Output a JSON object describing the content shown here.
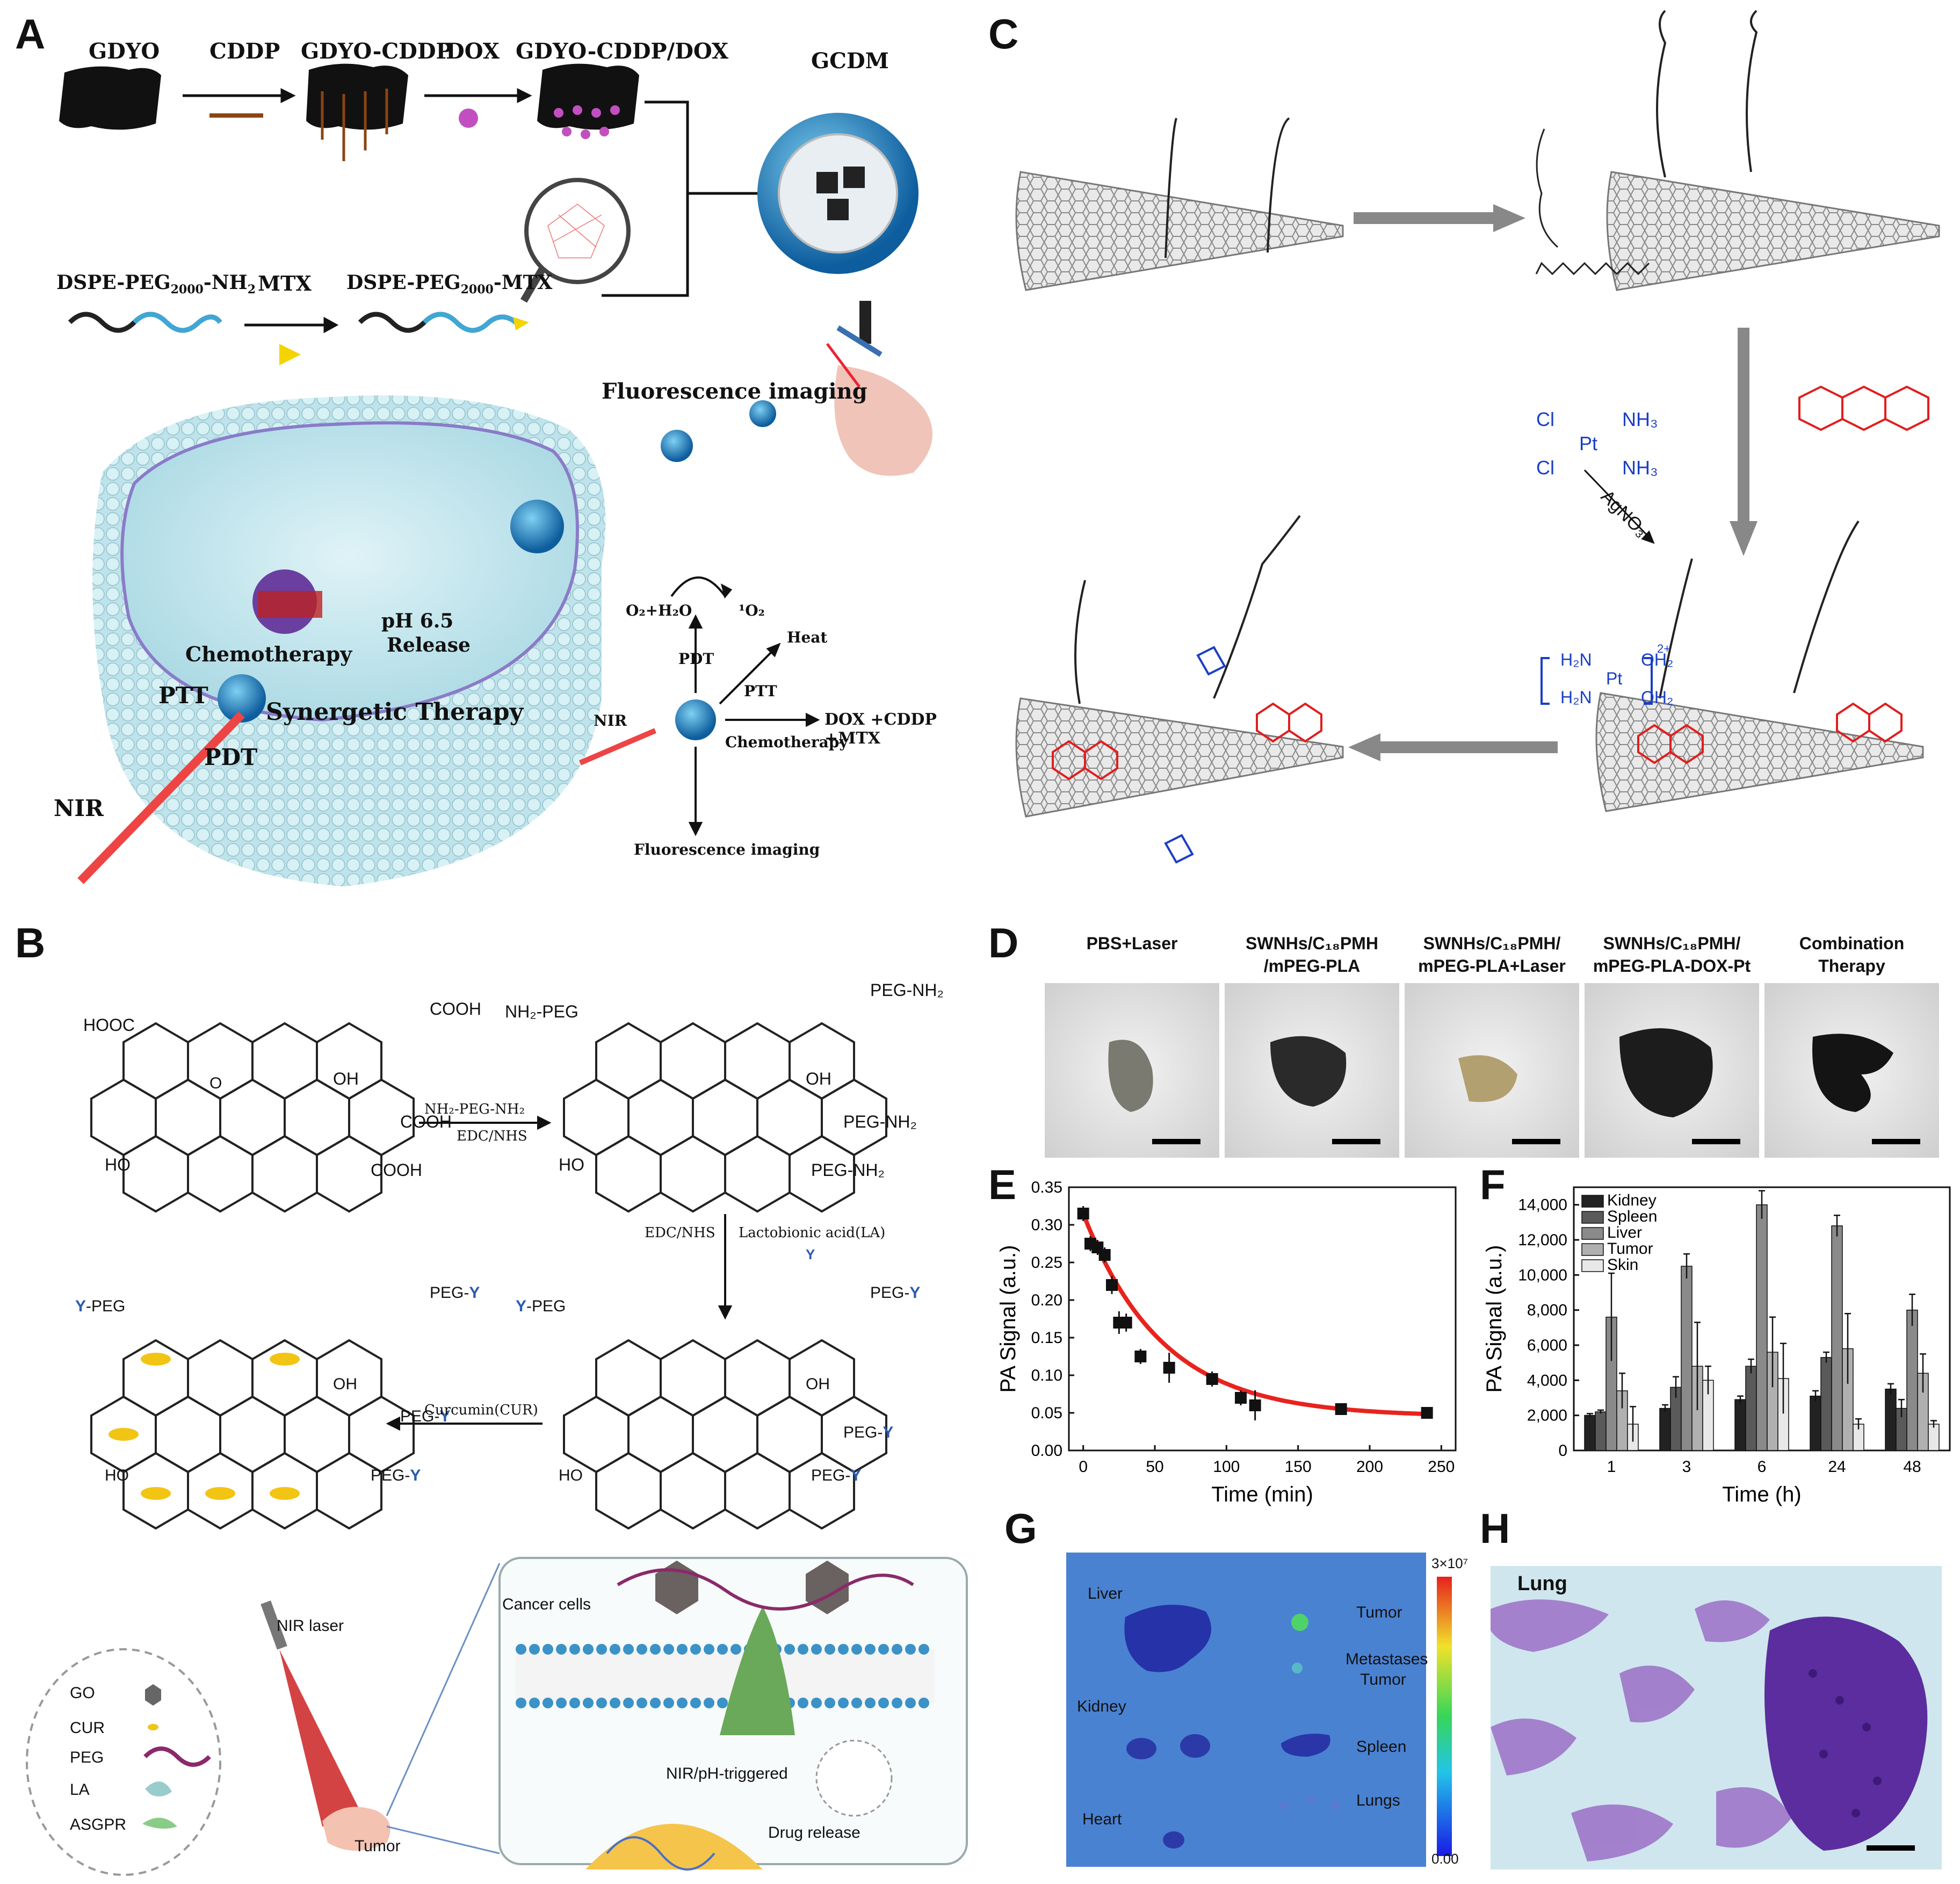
{
  "panels": {
    "A": "A",
    "B": "B",
    "C": "C",
    "D": "D",
    "E": "E",
    "F": "F",
    "G": "G",
    "H": "H"
  },
  "panelA": {
    "steps": [
      "GDYO",
      "CDDP",
      "GDYO-CDDP",
      "DOX",
      "GDYO-CDDP/DOX"
    ],
    "gcdm": "GCDM",
    "dspe_base": "DSPE-PEG",
    "dspe_sub": "2000",
    "dspe_nh2_suffix": "-NH",
    "dspe_nh2_sub": "2",
    "mtx": "MTX",
    "dspe_mtx_suffix": "-MTX",
    "fluorescence_imaging": "Fluorescence imaging",
    "chemotherapy": "Chemotherapy",
    "ph": "pH 6.5",
    "release": "Release",
    "ptt": "PTT",
    "synergetic": "Synergetic Therapy",
    "pdt": "PDT",
    "nir": "NIR",
    "o2h2o": "O₂+H₂O",
    "singlet": "¹O₂",
    "heat": "Heat",
    "drugs": "DOX +CDDP +MTX",
    "fluorescence_imaging_2": "Fluorescence imaging"
  },
  "panelB": {
    "hooc": "HOOC",
    "cooh": "COOH",
    "oh": "OH",
    "ho": "HO",
    "o": "O",
    "nh2peg": "NH₂-PEG",
    "pegnh2": "PEG-NH₂",
    "reagent1": "NH₂-PEG-NH₂",
    "edcnhs": "EDC/NHS",
    "la": "Lactobionic acid(LA)",
    "y": "Y",
    "ypeg": "-PEG",
    "pegy": "PEG-",
    "curcumin": "Curcumin(CUR)",
    "cancer_cells": "Cancer cells",
    "nir_laser": "NIR laser",
    "tumor": "Tumor",
    "nir_ph": "NIR/pH-triggered",
    "drug_release": "Drug release",
    "legend": [
      "GO",
      "CUR",
      "PEG",
      "LA",
      "ASGPR"
    ]
  },
  "panelC": {
    "cl": "Cl",
    "pt": "Pt",
    "nh3": "NH₃",
    "agno3": "AgNO₃",
    "h2n": "H₂N",
    "oh2": "OH₂",
    "charge": "2+"
  },
  "panelD": {
    "groups": [
      "PBS+Laser",
      "SWNHs/C₁₈PMH /mPEG-PLA",
      "SWNHs/C₁₈PMH/ mPEG-PLA+Laser",
      "SWNHs/C₁₈PMH/ mPEG-PLA-DOX-Pt",
      "Combination Therapy"
    ]
  },
  "panelG": {
    "labels": [
      "Liver",
      "Tumor",
      "Metastases Tumor",
      "Kidney",
      "Spleen",
      "Lungs",
      "Heart"
    ],
    "scale_max": "3×10⁷",
    "scale_min": "0.00"
  },
  "panelH": {
    "label": "Lung"
  },
  "chart_data": [
    {
      "type": "scatter",
      "panel": "E",
      "xlabel": "Time (min)",
      "ylabel": "PA Signal (a.u.)",
      "xlim": [
        -10,
        260
      ],
      "ylim": [
        0,
        0.35
      ],
      "xticks": [
        0,
        50,
        100,
        150,
        200,
        250
      ],
      "yticks": [
        0,
        0.05,
        0.1,
        0.15,
        0.2,
        0.25,
        0.3,
        0.35
      ],
      "ytick_labels": [
        "0.00",
        "0.05",
        "0.10",
        "0.15",
        "0.20",
        "0.25",
        "0.30",
        "0.35"
      ],
      "x": [
        0,
        5,
        10,
        15,
        20,
        25,
        30,
        40,
        60,
        90,
        110,
        120,
        180,
        240
      ],
      "y": [
        0.315,
        0.275,
        0.27,
        0.26,
        0.22,
        0.17,
        0.17,
        0.125,
        0.11,
        0.095,
        0.07,
        0.06,
        0.055,
        0.05
      ],
      "err": [
        0.01,
        0.01,
        0.01,
        0.01,
        0.012,
        0.015,
        0.012,
        0.01,
        0.02,
        0.01,
        0.01,
        0.02,
        0.005,
        0.005
      ],
      "fit": {
        "type": "exponential decay",
        "color": "#e8231e"
      },
      "grid": false
    },
    {
      "type": "bar",
      "panel": "F",
      "xlabel": "Time (h)",
      "ylabel": "PA Signal (a.u.)",
      "ylim": [
        0,
        15000
      ],
      "yticks": [
        0,
        2000,
        4000,
        6000,
        8000,
        10000,
        12000,
        14000
      ],
      "ytick_labels": [
        "0",
        "2,000",
        "4,000",
        "6,000",
        "8,000",
        "10,000",
        "12,000",
        "14,000"
      ],
      "categories": [
        "1",
        "3",
        "6",
        "24",
        "48"
      ],
      "legend_position": "top-left",
      "series": [
        {
          "name": "Kidney",
          "values": [
            2000,
            2400,
            2900,
            3100,
            3500
          ],
          "err": [
            100,
            200,
            200,
            300,
            300
          ]
        },
        {
          "name": "Spleen",
          "values": [
            2200,
            3600,
            4800,
            5300,
            2400
          ],
          "err": [
            100,
            600,
            400,
            300,
            500
          ]
        },
        {
          "name": "Liver",
          "values": [
            7600,
            10500,
            14000,
            12800,
            8000
          ],
          "err": [
            2500,
            700,
            800,
            600,
            900
          ]
        },
        {
          "name": "Tumor",
          "values": [
            3400,
            4800,
            5600,
            5800,
            4400
          ],
          "err": [
            1000,
            2500,
            2000,
            2000,
            1100
          ]
        },
        {
          "name": "Skin",
          "values": [
            1500,
            4000,
            4100,
            1500,
            1500
          ],
          "err": [
            1000,
            800,
            2000,
            300,
            200
          ]
        }
      ]
    }
  ]
}
